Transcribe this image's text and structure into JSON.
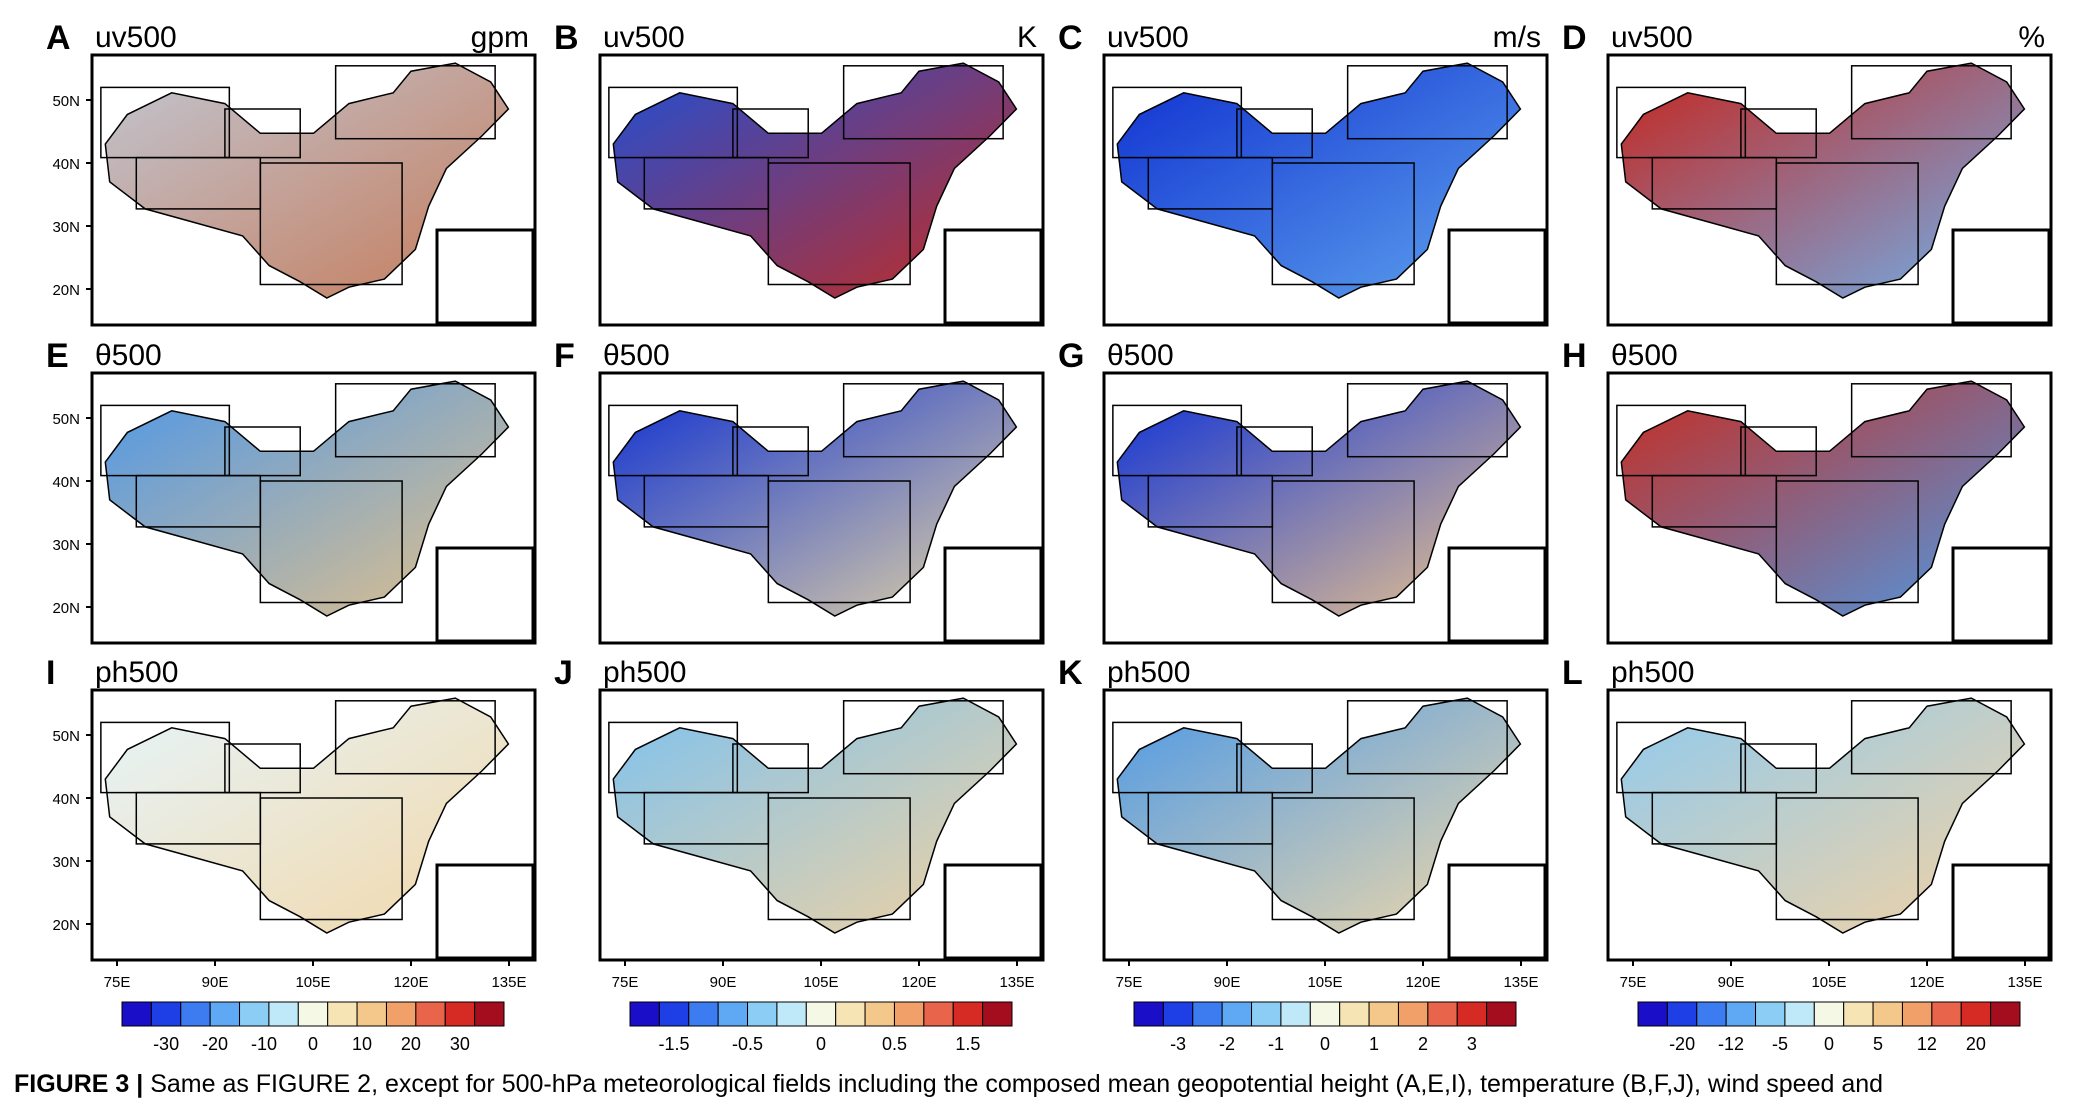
{
  "figure": {
    "panels": [
      {
        "letter": "A",
        "var": "uv500",
        "unit": "gpm",
        "palette": [
          "#c1c6d2",
          "#c67b5a"
        ],
        "pattern": "warm"
      },
      {
        "letter": "B",
        "var": "uv500",
        "unit": "K",
        "palette": [
          "#1f4fd6",
          "#c62a1e"
        ],
        "pattern": "mix1"
      },
      {
        "letter": "C",
        "var": "uv500",
        "unit": "m/s",
        "palette": [
          "#0e2fd0",
          "#5fa4ee"
        ],
        "pattern": "cold"
      },
      {
        "letter": "D",
        "var": "uv500",
        "unit": "%",
        "palette": [
          "#c6241c",
          "#6fb2ee"
        ],
        "pattern": "mix2"
      },
      {
        "letter": "E",
        "var": "θ500",
        "unit": "",
        "palette": [
          "#4d97e8",
          "#e4c189"
        ],
        "pattern": "mild"
      },
      {
        "letter": "F",
        "var": "θ500",
        "unit": "",
        "palette": [
          "#0d2fd2",
          "#e6d6a5"
        ],
        "pattern": "cold2"
      },
      {
        "letter": "G",
        "var": "θ500",
        "unit": "",
        "palette": [
          "#0a2fd8",
          "#f0c88c"
        ],
        "pattern": "mix3"
      },
      {
        "letter": "H",
        "var": "θ500",
        "unit": "",
        "palette": [
          "#c82b1f",
          "#4c9be6"
        ],
        "pattern": "mix4"
      },
      {
        "letter": "I",
        "var": "ph500",
        "unit": "",
        "palette": [
          "#e6f5fb",
          "#f2d7a8"
        ],
        "pattern": "pale"
      },
      {
        "letter": "J",
        "var": "ph500",
        "unit": "",
        "palette": [
          "#7ec2ef",
          "#f2d2a1"
        ],
        "pattern": "pale2"
      },
      {
        "letter": "K",
        "var": "ph500",
        "unit": "",
        "palette": [
          "#4d99e6",
          "#f2d9a8"
        ],
        "pattern": "pale3"
      },
      {
        "letter": "L",
        "var": "ph500",
        "unit": "",
        "palette": [
          "#90caee",
          "#f4d2a3"
        ],
        "pattern": "pale4"
      }
    ],
    "lat_labels": [
      "50N",
      "40N",
      "30N",
      "20N"
    ],
    "lon_labels": [
      "75E",
      "90E",
      "105E",
      "120E",
      "135E"
    ],
    "colorbars": [
      {
        "labels": [
          "-30",
          "-20",
          "-10",
          "0",
          "10",
          "20",
          "30"
        ]
      },
      {
        "labels": [
          "-1.5",
          "-0.5",
          "0",
          "0.5",
          "1.5"
        ]
      },
      {
        "labels": [
          "-3",
          "-2",
          "-1",
          "0",
          "1",
          "2",
          "3"
        ]
      },
      {
        "labels": [
          "-20",
          "-12",
          "-5",
          "0",
          "5",
          "12",
          "20"
        ]
      }
    ],
    "colorbar_colors": [
      "#1a0ec8",
      "#1e3ee6",
      "#3c7cf0",
      "#5fa8f4",
      "#8ccdf6",
      "#bfe9f8",
      "#f6f8e6",
      "#f6e4b4",
      "#f4c88a",
      "#f0a068",
      "#e8644a",
      "#d62a24",
      "#a30d1e"
    ]
  },
  "caption": {
    "label": "FIGURE 3 | ",
    "text": "Same as FIGURE 2, except for 500-hPa meteorological fields including the composed mean geopotential height (A,E,I), temperature (B,F,J), wind speed and"
  }
}
